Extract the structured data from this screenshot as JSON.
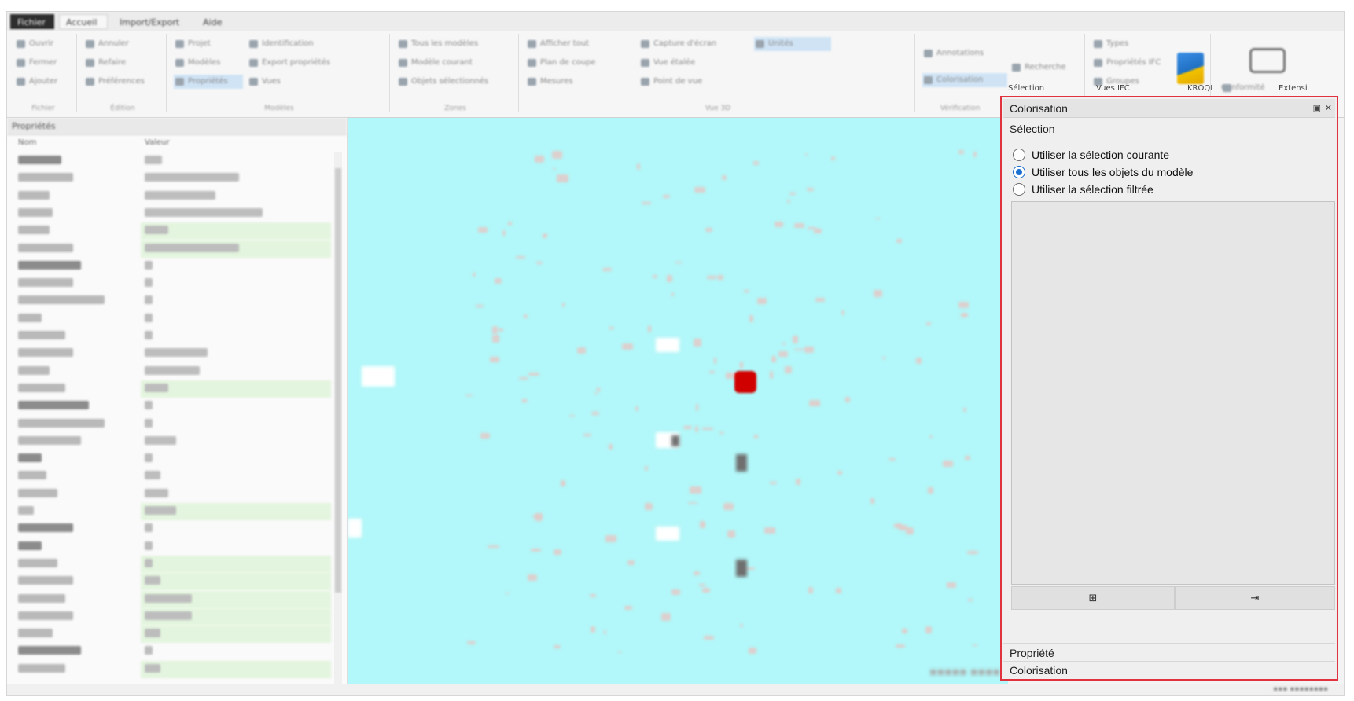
{
  "menu": {
    "tabs": [
      "Fichier",
      "Accueil",
      "Import/Export",
      "Aide"
    ]
  },
  "ribbon": {
    "groups": [
      {
        "label": "Fichier",
        "buttons": [
          "Ouvrir",
          "Fermer",
          "Ajouter"
        ]
      },
      {
        "label": "Édition",
        "buttons": [
          "Annuler",
          "Refaire",
          "Préférences"
        ]
      },
      {
        "label": "Modèles",
        "buttons": [
          "Projet",
          "Modèles",
          "Propriétés",
          "Identification",
          "Export propriétés",
          "Vues"
        ]
      },
      {
        "label": "Zones",
        "buttons": [
          "Tous les modèles",
          "Modèle courant",
          "Objets sélectionnés"
        ]
      },
      {
        "label": "Vue 3D",
        "buttons": [
          "Afficher tout",
          "Plan de coupe",
          "Mesures",
          "Capture d'écran",
          "Vue étalée",
          "Point de vue",
          "Unités"
        ]
      },
      {
        "label": "Vérification",
        "buttons": [
          "Annotations",
          "Colorisation"
        ]
      },
      {
        "label": "Recherche",
        "buttons": [
          "Recherche"
        ]
      },
      {
        "label": "Types",
        "buttons": [
          "Types",
          "Propriétés IFC",
          "Groupes"
        ]
      },
      {
        "label": "Conformité",
        "buttons": [
          "Conformité"
        ]
      }
    ]
  },
  "left_panel": {
    "title": "Propriétés",
    "col_name": "Nom",
    "col_value": "Valeur"
  },
  "right_panel": {
    "tabs": [
      "Sélection",
      "Vues IFC",
      "KROQI",
      "Extensi"
    ],
    "header": "Colorisation",
    "float_icon": "float-icon",
    "close_icon": "close-icon",
    "selection_title": "Sélection",
    "radios": [
      {
        "label": "Utiliser la sélection courante",
        "checked": false
      },
      {
        "label": "Utiliser tous les objets du modèle",
        "checked": true
      },
      {
        "label": "Utiliser la sélection filtrée",
        "checked": false
      }
    ],
    "btn_left_icon": "add-to-list-icon",
    "btn_right_icon": "apply-icon",
    "property_title": "Propriété",
    "colorisation_title": "Colorisation"
  },
  "colors": {
    "viewport_bg": "#b2f7f9",
    "highlight_border": "#e0333f",
    "selected_object": "#d10000",
    "radio_accent": "#1b6fd1"
  }
}
